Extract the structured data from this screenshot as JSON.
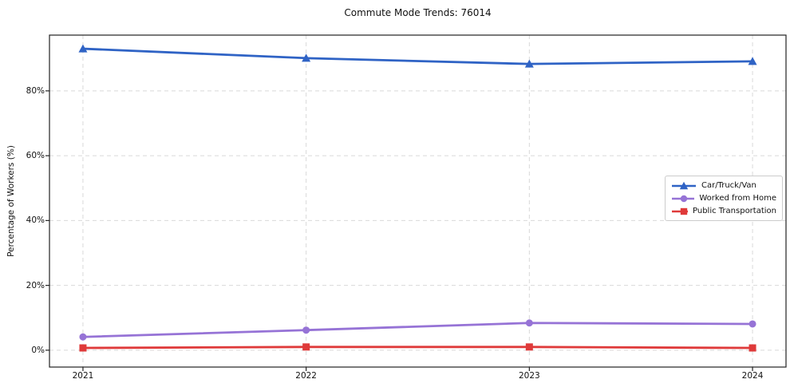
{
  "chart_data": {
    "type": "line",
    "title": "Commute Mode Trends: 76014",
    "xlabel": "",
    "ylabel": "Percentage of Workers (%)",
    "categories": [
      "2021",
      "2022",
      "2023",
      "2024"
    ],
    "x": [
      2021,
      2022,
      2023,
      2024
    ],
    "xlim": [
      2020.85,
      2024.15
    ],
    "ylim": [
      -5.2,
      97.2
    ],
    "ytick_labels": [
      "0%",
      "20%",
      "40%",
      "60%",
      "80%"
    ],
    "ytick_values": [
      0,
      20,
      40,
      60,
      80
    ],
    "grid": true,
    "grid_style": "dashed",
    "grid_color": "#d9d9d9",
    "legend_position": "center-right",
    "series": [
      {
        "name": "Car/Truck/Van",
        "color": "#2f63c5",
        "marker": "triangle",
        "values": [
          93.0,
          90.1,
          88.3,
          89.1
        ]
      },
      {
        "name": "Worked from Home",
        "color": "#9673d6",
        "marker": "circle",
        "values": [
          4.1,
          6.2,
          8.4,
          8.1
        ]
      },
      {
        "name": "Public Transportation",
        "color": "#df3a3a",
        "marker": "square",
        "values": [
          0.7,
          1.0,
          1.0,
          0.7
        ]
      }
    ]
  }
}
